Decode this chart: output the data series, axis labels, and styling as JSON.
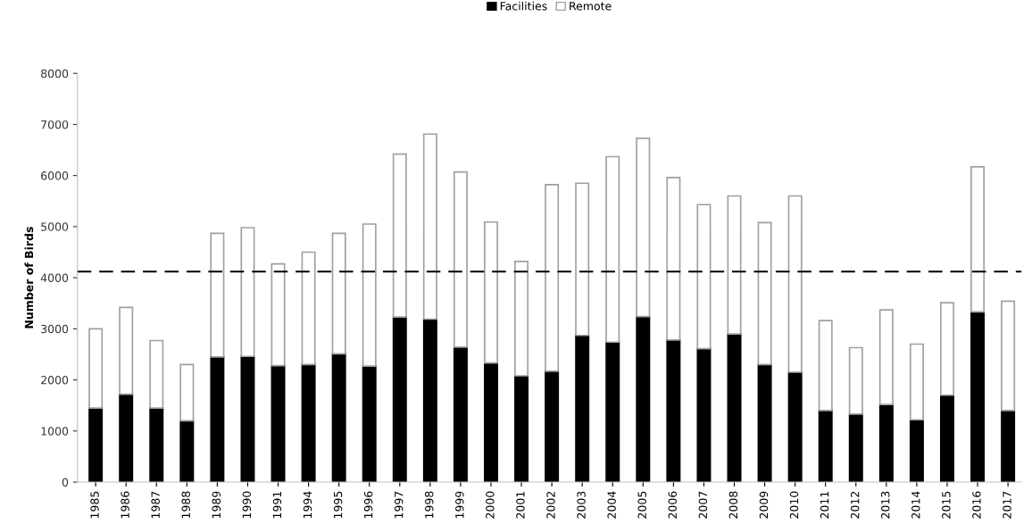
{
  "chart_data": {
    "type": "bar",
    "stacked": true,
    "ylabel": "Number of Birds",
    "categories": [
      "1985",
      "1986",
      "1987",
      "1988",
      "1989",
      "1990",
      "1991",
      "1994",
      "1995",
      "1996",
      "1997",
      "1998",
      "1999",
      "2000",
      "2001",
      "2002",
      "2003",
      "2004",
      "2005",
      "2006",
      "2007",
      "2008",
      "2009",
      "2010",
      "2011",
      "2012",
      "2013",
      "2014",
      "2015",
      "2016",
      "2017"
    ],
    "series": [
      {
        "name": "Facilities",
        "color": "#000000",
        "values": [
          1450,
          1720,
          1450,
          1200,
          2450,
          2460,
          2280,
          2300,
          2510,
          2270,
          3230,
          3190,
          2640,
          2330,
          2080,
          2170,
          2870,
          2740,
          3240,
          2780,
          2610,
          2900,
          2300,
          2150,
          1400,
          1330,
          1520,
          1220,
          1700,
          3330,
          1400
        ]
      },
      {
        "name": "Remote",
        "color": "#ffffff",
        "values": [
          1550,
          1700,
          1320,
          1100,
          2420,
          2520,
          1990,
          2200,
          2360,
          2780,
          3190,
          3620,
          3430,
          2760,
          2240,
          3650,
          2980,
          3630,
          3490,
          3180,
          2820,
          2700,
          2780,
          3450,
          1760,
          1300,
          1850,
          1480,
          1810,
          2840,
          2140
        ]
      }
    ],
    "ylim": [
      0,
      8000
    ],
    "yticks": [
      0,
      1000,
      2000,
      3000,
      4000,
      5000,
      6000,
      7000,
      8000
    ],
    "ref_lines": [
      {
        "axis": "y",
        "value": 4120,
        "color": "#000000",
        "line_style": "dashed"
      }
    ],
    "legend": "top",
    "grid": false
  }
}
